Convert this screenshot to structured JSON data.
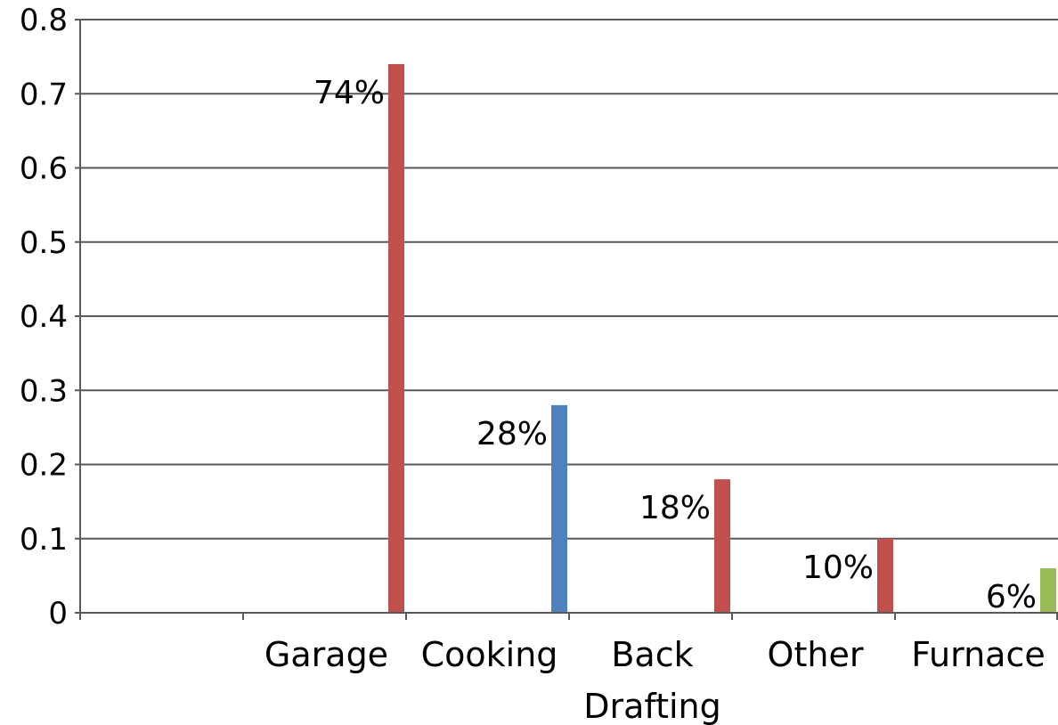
{
  "chart_data": {
    "type": "bar",
    "categories": [
      "",
      "Garage",
      "Cooking",
      "Back Drafting",
      "Other",
      "Furnace"
    ],
    "values": [
      null,
      0.74,
      0.28,
      0.18,
      0.1,
      0.06
    ],
    "data_labels": [
      "",
      "74%",
      "28%",
      "18%",
      "10%",
      "6%"
    ],
    "bar_colors": [
      "#C0504D",
      "#C0504D",
      "#4F81BD",
      "#C0504D",
      "#C0504D",
      "#9BBB59"
    ],
    "ylim": [
      0,
      0.8
    ],
    "yticks": [
      0,
      0.1,
      0.2,
      0.3,
      0.4,
      0.5,
      0.6,
      0.7,
      0.8
    ],
    "ytick_labels": [
      "0",
      "0.1",
      "0.2",
      "0.3",
      "0.4",
      "0.5",
      "0.6",
      "0.7",
      "0.8"
    ],
    "grid": true,
    "legend": "none",
    "title": "",
    "xlabel": "",
    "ylabel": ""
  }
}
